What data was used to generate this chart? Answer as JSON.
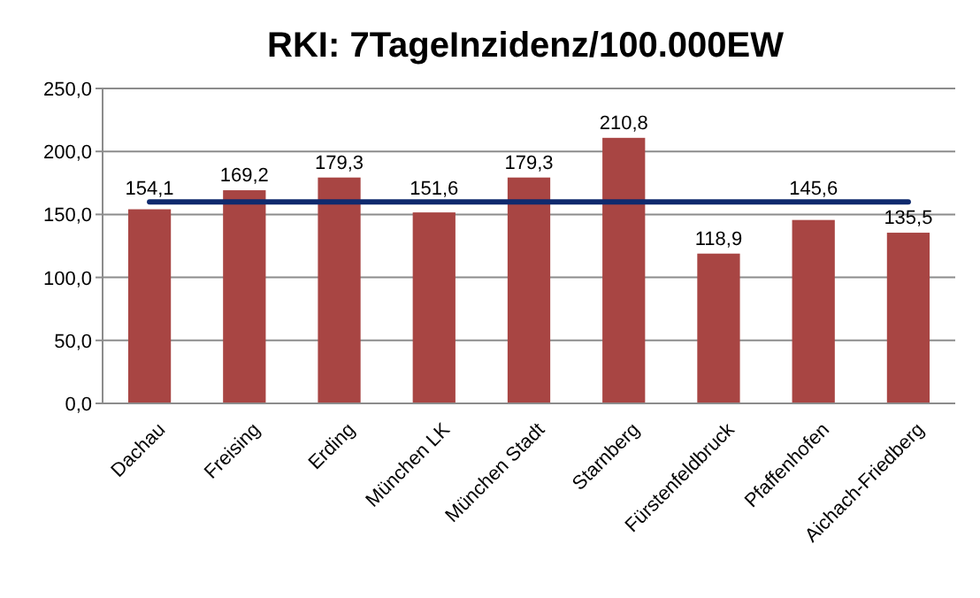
{
  "chart_data": {
    "type": "bar",
    "title": "RKI: 7TageInzidenz/100.000EW",
    "categories": [
      "Dachau",
      "Freising",
      "Erding",
      "München LK",
      "München Stadt",
      "Starnberg",
      "Fürstenfeldbruck",
      "Pfaffenhofen",
      "Aichach-Friedberg"
    ],
    "series": [
      {
        "color": "#a84543",
        "values": [
          154.1,
          169.2,
          179.3,
          151.6,
          179.3,
          210.8,
          118.9,
          145.6,
          135.5
        ],
        "value_labels": [
          "154,1",
          "169,2",
          "179,3",
          "151,6",
          "179,3",
          "210,8",
          "118,9",
          "145,6",
          "135,5"
        ]
      },
      {
        "type": "line",
        "color": "#0f2a6e",
        "values": [
          160,
          160,
          160,
          160,
          160,
          160,
          160,
          160,
          160
        ]
      }
    ],
    "ylim": [
      0,
      250
    ],
    "yticks": [
      {
        "value": 0,
        "label": "0,0"
      },
      {
        "value": 50,
        "label": "50,0"
      },
      {
        "value": 100,
        "label": "100,0"
      },
      {
        "value": 150,
        "label": "150,0"
      },
      {
        "value": 200,
        "label": "200,0"
      },
      {
        "value": 250,
        "label": "250,0"
      }
    ],
    "grid": "y"
  }
}
